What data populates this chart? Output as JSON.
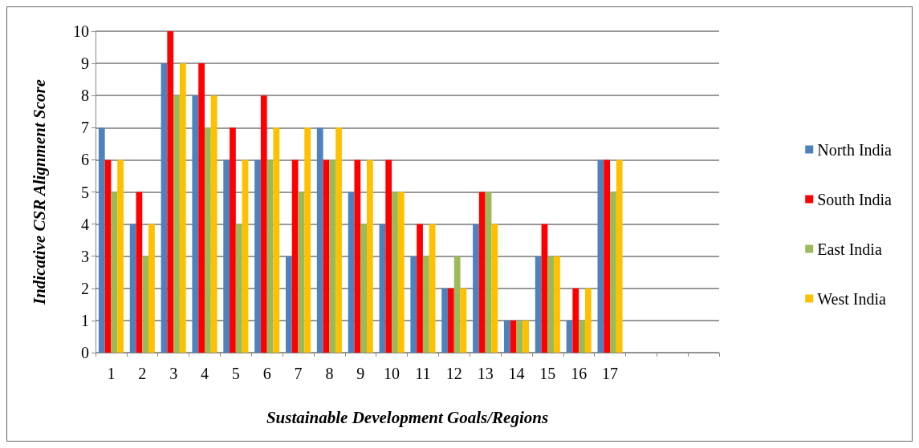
{
  "chart_data": {
    "type": "bar",
    "xlabel": "Sustainable Development Goals/Regions",
    "ylabel": "Indicative CSR Alignment Score",
    "categories": [
      "1",
      "2",
      "3",
      "4",
      "5",
      "6",
      "7",
      "8",
      "9",
      "10",
      "11",
      "12",
      "13",
      "14",
      "15",
      "16",
      "17",
      null,
      null,
      null
    ],
    "series": [
      {
        "name": "North India",
        "color": "#4f81bd",
        "values": [
          7,
          4,
          9,
          8,
          6,
          6,
          3,
          7,
          5,
          4,
          3,
          2,
          4,
          1,
          3,
          1,
          6,
          null,
          null,
          null
        ]
      },
      {
        "name": "South India",
        "color": "#ff0000",
        "values": [
          6,
          5,
          10,
          9,
          7,
          8,
          6,
          6,
          6,
          6,
          4,
          2,
          5,
          1,
          4,
          2,
          6,
          null,
          null,
          null
        ]
      },
      {
        "name": "East India",
        "color": "#9bbb59",
        "values": [
          5,
          3,
          8,
          7,
          4,
          6,
          5,
          6,
          4,
          5,
          3,
          3,
          5,
          1,
          3,
          1,
          5,
          null,
          null,
          null
        ]
      },
      {
        "name": "West India",
        "color": "#ffc000",
        "values": [
          6,
          4,
          9,
          8,
          6,
          7,
          7,
          7,
          6,
          5,
          4,
          2,
          4,
          1,
          3,
          2,
          6,
          null,
          null,
          null
        ]
      }
    ],
    "ylim": [
      0,
      10
    ],
    "yticks": [
      0,
      1,
      2,
      3,
      4,
      5,
      6,
      7,
      8,
      9,
      10
    ],
    "grid": "y",
    "legend": "right"
  }
}
